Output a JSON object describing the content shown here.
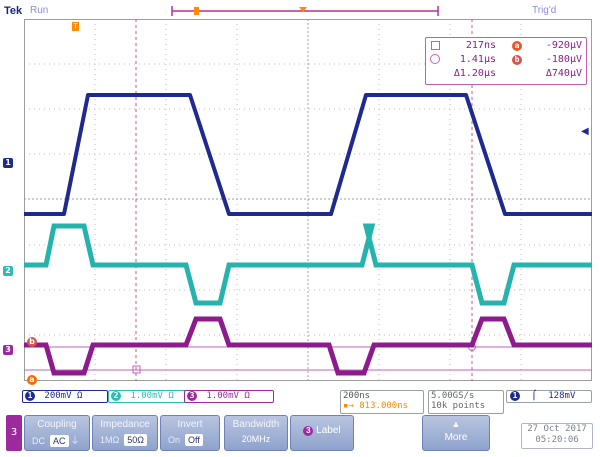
{
  "header": {
    "brand": "Tek",
    "run_state": "Run",
    "trigger_state": "Trig'd"
  },
  "cursor_readout": {
    "t1": "217ns",
    "t2": "1.41µs",
    "dt": "Δ1.20µs",
    "v1": "-920µV",
    "v2": "-180µV",
    "dv": "Δ740µV",
    "badge_a": "a",
    "badge_b": "b"
  },
  "channels": [
    {
      "id": "1",
      "scale": "200mV",
      "coupling_icon": "Ω",
      "color": "#1e2a8f"
    },
    {
      "id": "2",
      "scale": "1.00mV",
      "coupling_icon": "Ω",
      "color": "#2bbcb6"
    },
    {
      "id": "3",
      "scale": "1.00mV",
      "coupling_icon": "Ω",
      "color": "#9c2a9c"
    }
  ],
  "markers": {
    "ch1": "1",
    "ch2": "2",
    "ch3": "3",
    "cursor_a": "a",
    "cursor_b": "b",
    "trigger_t": "T"
  },
  "timebase": {
    "scale": "200ns",
    "delay": "813.000ns"
  },
  "acquisition": {
    "sample_rate": "5.00GS/s",
    "record_length": "10k points"
  },
  "trigger": {
    "source": "1",
    "level": "128mV"
  },
  "menu": {
    "channel": "3",
    "coupling_label": "Coupling",
    "coupling_opts": [
      "DC",
      "AC"
    ],
    "coupling_selected": "AC",
    "impedance_label": "Impedance",
    "impedance_opts": [
      "1MΩ",
      "50Ω"
    ],
    "impedance_selected": "50Ω",
    "invert_label": "Invert",
    "invert_opts": [
      "On",
      "Off"
    ],
    "invert_selected": "Off",
    "bandwidth_label": "Bandwidth",
    "bandwidth_value": "20MHz",
    "label_label": "Label",
    "more_label": "More"
  },
  "datetime": {
    "date": "27 Oct  2017",
    "time": "05:20:06"
  },
  "colors": {
    "ch1": "#1e2a8f",
    "ch2": "#2bbcb6",
    "ch3": "#9c2a9c",
    "cursor": "#d14ca0",
    "orange": "#ff8c00",
    "grid": "#c8c8c8"
  }
}
